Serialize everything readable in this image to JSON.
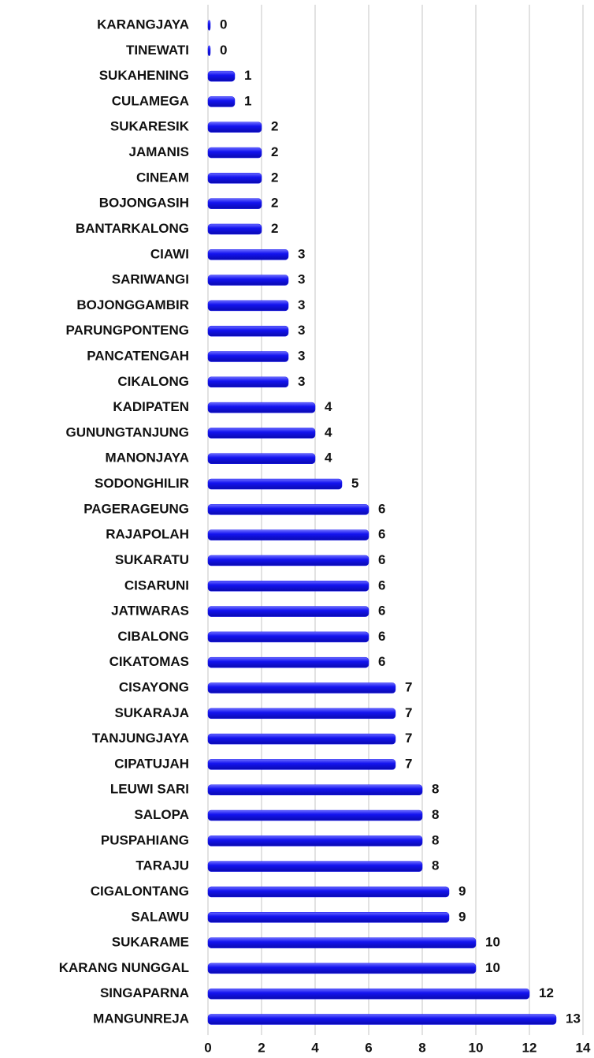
{
  "chart_data": {
    "type": "bar",
    "orientation": "horizontal",
    "categories": [
      "KARANGJAYA",
      "TINEWATI",
      "SUKAHENING",
      "CULAMEGA",
      "SUKARESIK",
      "JAMANIS",
      "CINEAM",
      "BOJONGASIH",
      "BANTARKALONG",
      "CIAWI",
      "SARIWANGI",
      "BOJONGGAMBIR",
      "PARUNGPONTENG",
      "PANCATENGAH",
      "CIKALONG",
      "KADIPATEN",
      "GUNUNGTANJUNG",
      "MANONJAYA",
      "SODONGHILIR",
      "PAGERAGEUNG",
      "RAJAPOLAH",
      "SUKARATU",
      "CISARUNI",
      "JATIWARAS",
      "CIBALONG",
      "CIKATOMAS",
      "CISAYONG",
      "SUKARAJA",
      "TANJUNGJAYA",
      "CIPATUJAH",
      "LEUWI SARI",
      "SALOPA",
      "PUSPAHIANG",
      "TARAJU",
      "CIGALONTANG",
      "SALAWU",
      "SUKARAME",
      "KARANG NUNGGAL",
      "SINGAPARNA",
      "MANGUNREJA"
    ],
    "values": [
      0,
      0,
      1,
      1,
      2,
      2,
      2,
      2,
      2,
      3,
      3,
      3,
      3,
      3,
      3,
      4,
      4,
      4,
      5,
      6,
      6,
      6,
      6,
      6,
      6,
      6,
      7,
      7,
      7,
      7,
      8,
      8,
      8,
      8,
      9,
      9,
      10,
      10,
      12,
      13
    ],
    "color": "#1414f0",
    "xlim": [
      0,
      14
    ],
    "xticks": [
      0,
      2,
      4,
      6,
      8,
      10,
      12,
      14
    ],
    "grid": true
  }
}
